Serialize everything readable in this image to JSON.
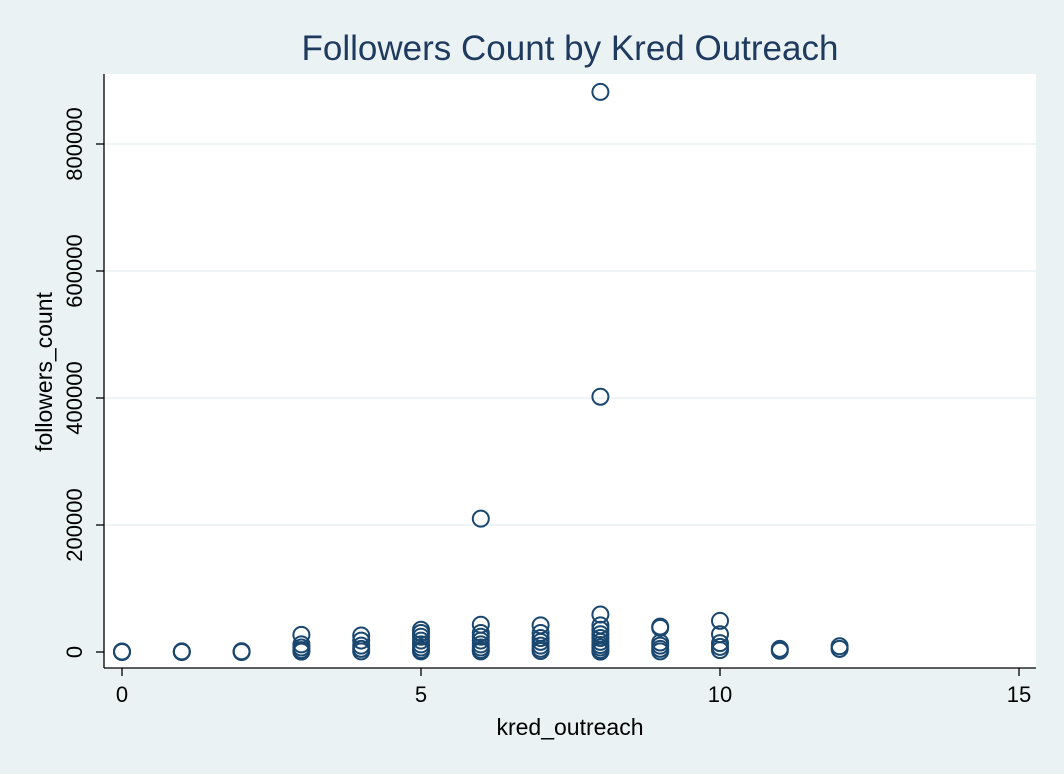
{
  "chart_data": {
    "type": "scatter",
    "title": "Followers Count by Kred Outreach",
    "xlabel": "kred_outreach",
    "ylabel": "followers_count",
    "xlim": [
      0,
      15
    ],
    "ylim": [
      0,
      900000
    ],
    "xticks": [
      0,
      5,
      10,
      15
    ],
    "yticks": [
      0,
      200000,
      400000,
      600000,
      800000
    ],
    "grid": true,
    "marker_color": "#1a476f",
    "plot_background": "#ffffff",
    "figure_background": "#eaf2f3",
    "points": [
      {
        "x": 0,
        "y": 0
      },
      {
        "x": 0,
        "y": 300
      },
      {
        "x": 0,
        "y": 800
      },
      {
        "x": 1,
        "y": 0
      },
      {
        "x": 1,
        "y": 400
      },
      {
        "x": 1,
        "y": 900
      },
      {
        "x": 2,
        "y": 0
      },
      {
        "x": 2,
        "y": 500
      },
      {
        "x": 2,
        "y": 1200
      },
      {
        "x": 3,
        "y": 27000
      },
      {
        "x": 3,
        "y": 12000
      },
      {
        "x": 3,
        "y": 7000
      },
      {
        "x": 3,
        "y": 3000
      },
      {
        "x": 3,
        "y": 500
      },
      {
        "x": 4,
        "y": 26000
      },
      {
        "x": 4,
        "y": 18000
      },
      {
        "x": 4,
        "y": 10000
      },
      {
        "x": 4,
        "y": 5000
      },
      {
        "x": 4,
        "y": 1000
      },
      {
        "x": 5,
        "y": 35000
      },
      {
        "x": 5,
        "y": 30000
      },
      {
        "x": 5,
        "y": 24000
      },
      {
        "x": 5,
        "y": 18000
      },
      {
        "x": 5,
        "y": 12000
      },
      {
        "x": 5,
        "y": 7000
      },
      {
        "x": 5,
        "y": 3000
      },
      {
        "x": 5,
        "y": 1000
      },
      {
        "x": 6,
        "y": 210000
      },
      {
        "x": 6,
        "y": 43000
      },
      {
        "x": 6,
        "y": 30000
      },
      {
        "x": 6,
        "y": 24000
      },
      {
        "x": 6,
        "y": 18000
      },
      {
        "x": 6,
        "y": 12000
      },
      {
        "x": 6,
        "y": 7000
      },
      {
        "x": 6,
        "y": 3000
      },
      {
        "x": 6,
        "y": 1000
      },
      {
        "x": 7,
        "y": 42000
      },
      {
        "x": 7,
        "y": 30000
      },
      {
        "x": 7,
        "y": 22000
      },
      {
        "x": 7,
        "y": 16000
      },
      {
        "x": 7,
        "y": 10000
      },
      {
        "x": 7,
        "y": 5000
      },
      {
        "x": 7,
        "y": 1500
      },
      {
        "x": 8,
        "y": 882000
      },
      {
        "x": 8,
        "y": 402000
      },
      {
        "x": 8,
        "y": 59000
      },
      {
        "x": 8,
        "y": 42000
      },
      {
        "x": 8,
        "y": 35000
      },
      {
        "x": 8,
        "y": 28000
      },
      {
        "x": 8,
        "y": 22000
      },
      {
        "x": 8,
        "y": 16000
      },
      {
        "x": 8,
        "y": 11000
      },
      {
        "x": 8,
        "y": 7000
      },
      {
        "x": 8,
        "y": 3000
      },
      {
        "x": 8,
        "y": 500
      },
      {
        "x": 9,
        "y": 40000
      },
      {
        "x": 9,
        "y": 38000
      },
      {
        "x": 9,
        "y": 15000
      },
      {
        "x": 9,
        "y": 10000
      },
      {
        "x": 9,
        "y": 5000
      },
      {
        "x": 9,
        "y": 1000
      },
      {
        "x": 10,
        "y": 49000
      },
      {
        "x": 10,
        "y": 28000
      },
      {
        "x": 10,
        "y": 14000
      },
      {
        "x": 10,
        "y": 8000
      },
      {
        "x": 10,
        "y": 3000
      },
      {
        "x": 11,
        "y": 5000
      },
      {
        "x": 11,
        "y": 2000
      },
      {
        "x": 12,
        "y": 9000
      },
      {
        "x": 12,
        "y": 5000
      }
    ]
  }
}
